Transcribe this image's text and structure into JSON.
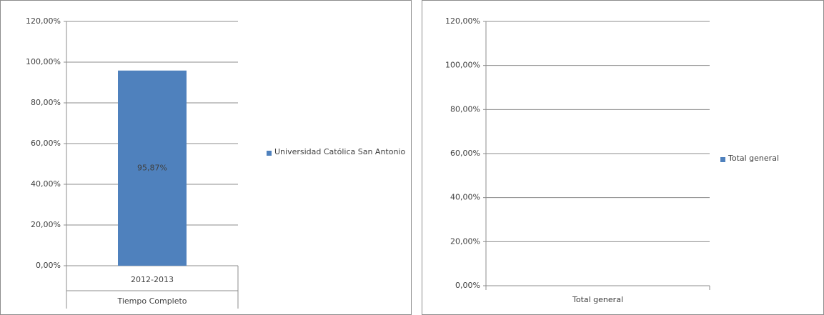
{
  "chart_data": [
    {
      "type": "bar",
      "categories": [
        "2012-2013"
      ],
      "category_group": "Tiempo Completo",
      "series": [
        {
          "name": "Universidad Católica San Antonio",
          "color": "#4f81bd",
          "values": [
            95.87
          ],
          "value_labels": [
            "95,87%"
          ]
        }
      ],
      "ylim": [
        0,
        120
      ],
      "yticks": [
        {
          "value": 0,
          "label": "0,00%"
        },
        {
          "value": 20,
          "label": "20,00%"
        },
        {
          "value": 40,
          "label": "40,00%"
        },
        {
          "value": 60,
          "label": "60,00%"
        },
        {
          "value": 80,
          "label": "80,00%"
        },
        {
          "value": 100,
          "label": "100,00%"
        },
        {
          "value": 120,
          "label": "120,00%"
        }
      ],
      "grid": true,
      "legend": "right"
    },
    {
      "type": "bar",
      "categories": [
        "Total general"
      ],
      "series": [
        {
          "name": "Total general",
          "color": "#4f81bd",
          "values": [
            null
          ]
        }
      ],
      "ylim": [
        0,
        120
      ],
      "yticks": [
        {
          "value": 0,
          "label": "0,00%"
        },
        {
          "value": 20,
          "label": "20,00%"
        },
        {
          "value": 40,
          "label": "40,00%"
        },
        {
          "value": 60,
          "label": "60,00%"
        },
        {
          "value": 80,
          "label": "80,00%"
        },
        {
          "value": 100,
          "label": "100,00%"
        },
        {
          "value": 120,
          "label": "120,00%"
        }
      ],
      "grid": true,
      "legend": "right"
    }
  ]
}
